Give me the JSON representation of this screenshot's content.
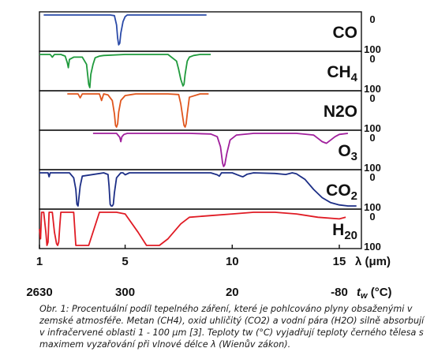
{
  "chart_data": {
    "type": "line",
    "xlabel": "λ (μm)",
    "x_ticks": [
      1,
      5,
      10,
      15
    ],
    "temp_label": "tw (°C)",
    "temp_ticks": [
      {
        "lambda": 1,
        "label": "2630"
      },
      {
        "lambda": 5,
        "label": "300"
      },
      {
        "lambda": 10,
        "label": "20"
      },
      {
        "lambda": 15,
        "label": "-80"
      }
    ],
    "y_ticks": [
      "0",
      "100"
    ],
    "series": [
      {
        "name": "CO",
        "color": "#2a4aa8",
        "x": [
          1.2,
          3.0,
          4.3,
          4.5,
          4.6,
          4.65,
          4.7,
          4.75,
          4.8,
          4.9,
          5.0,
          5.1,
          5.3,
          6.0,
          8.8
        ],
        "y": [
          0,
          0,
          0,
          2,
          30,
          70,
          90,
          85,
          55,
          20,
          5,
          0,
          0,
          0,
          0
        ]
      },
      {
        "name": "CH4",
        "color": "#1f9a3c",
        "x": [
          1.0,
          1.5,
          1.6,
          1.7,
          2.0,
          2.2,
          2.3,
          2.35,
          2.4,
          2.6,
          3.0,
          3.2,
          3.3,
          3.35,
          3.4,
          3.5,
          3.6,
          3.8,
          4.0,
          5.0,
          7.0,
          7.4,
          7.5,
          7.6,
          7.7,
          7.75,
          7.8,
          7.9,
          8.0,
          8.2,
          8.5,
          9.0
        ],
        "y": [
          0,
          0,
          8,
          0,
          0,
          5,
          25,
          40,
          15,
          8,
          8,
          30,
          90,
          100,
          60,
          30,
          10,
          5,
          3,
          0,
          0,
          20,
          45,
          75,
          95,
          90,
          60,
          20,
          8,
          3,
          0,
          0
        ]
      },
      {
        "name": "N2O",
        "color": "#e0561d",
        "x": [
          2.3,
          2.8,
          2.9,
          3.0,
          3.5,
          3.8,
          3.9,
          4.0,
          4.2,
          4.4,
          4.5,
          4.55,
          4.6,
          4.65,
          4.7,
          4.8,
          5.0,
          5.3,
          5.5,
          7.0,
          7.5,
          7.6,
          7.7,
          7.75,
          7.8,
          7.85,
          7.9,
          8.0,
          8.5,
          8.9
        ],
        "y": [
          0,
          0,
          12,
          0,
          0,
          0,
          20,
          0,
          3,
          20,
          60,
          95,
          100,
          90,
          55,
          20,
          5,
          2,
          0,
          0,
          2,
          30,
          75,
          95,
          100,
          90,
          60,
          10,
          0,
          0
        ]
      },
      {
        "name": "O3",
        "color": "#a01f9c",
        "x": [
          3.5,
          4.6,
          4.75,
          4.8,
          4.85,
          4.95,
          5.1,
          6.0,
          8.0,
          9.0,
          9.3,
          9.45,
          9.55,
          9.6,
          9.65,
          9.75,
          9.9,
          10.2,
          11.0,
          13.0,
          13.8,
          14.0,
          14.2,
          14.4,
          14.6,
          14.8,
          15.0,
          15.4
        ],
        "y": [
          0,
          0,
          12,
          25,
          10,
          3,
          0,
          0,
          0,
          2,
          10,
          40,
          90,
          100,
          95,
          60,
          20,
          5,
          0,
          0,
          5,
          15,
          25,
          30,
          20,
          10,
          3,
          0
        ]
      },
      {
        "name": "CO2",
        "color": "#1c2e86",
        "x": [
          1.0,
          1.4,
          1.45,
          1.5,
          1.6,
          2.0,
          2.4,
          2.6,
          2.7,
          2.75,
          2.8,
          2.9,
          3.0,
          4.0,
          4.2,
          4.25,
          4.3,
          4.35,
          4.4,
          4.45,
          4.5,
          4.6,
          4.8,
          4.9,
          5.0,
          5.2,
          6.0,
          9.0,
          9.3,
          9.4,
          9.5,
          10.0,
          10.4,
          10.5,
          10.7,
          11.0,
          12.0,
          12.5,
          12.8,
          13.0,
          13.4,
          13.8,
          14.2,
          14.6,
          15.0,
          15.4,
          15.6,
          15.8
        ],
        "y": [
          0,
          0,
          12,
          0,
          0,
          0,
          0,
          15,
          50,
          95,
          100,
          40,
          10,
          0,
          5,
          40,
          95,
          100,
          100,
          95,
          60,
          15,
          0,
          0,
          6,
          0,
          0,
          0,
          6,
          10,
          0,
          0,
          10,
          12,
          4,
          0,
          2,
          5,
          0,
          3,
          20,
          50,
          75,
          90,
          97,
          100,
          100,
          100
        ]
      },
      {
        "name": "H20",
        "color": "#e01b24",
        "x": [
          1.0,
          1.05,
          1.1,
          1.2,
          1.3,
          1.35,
          1.4,
          1.45,
          1.5,
          1.6,
          1.7,
          1.8,
          1.85,
          1.9,
          1.95,
          2.0,
          2.1,
          2.4,
          2.6,
          2.7,
          3.0,
          3.3,
          3.8,
          4.2,
          4.6,
          5.0,
          5.6,
          6.0,
          6.2,
          6.6,
          7.0,
          7.6,
          8.0,
          9.0,
          10.0,
          11.0,
          12.0,
          13.0,
          14.0,
          15.0,
          15.3
        ],
        "y": [
          50,
          80,
          0,
          0,
          60,
          100,
          90,
          0,
          0,
          0,
          60,
          95,
          100,
          90,
          40,
          0,
          0,
          0,
          0,
          100,
          100,
          100,
          0,
          0,
          0,
          5,
          60,
          100,
          100,
          100,
          80,
          35,
          15,
          10,
          5,
          0,
          0,
          5,
          15,
          20,
          15
        ]
      }
    ]
  },
  "caption": "Obr. 1: Procentuální podíl tepelného záření, které je pohlcováno plyny obsaženými v zemské atmosféře. Metan (CH4), oxid uhličitý (CO2) a vodní pára (H2O) silně absorbují v infračervené oblasti 1 - 100 μm [3]. Teploty tw (°C) vyjadřují teploty černého tělesa s maximem vyzařování při vlnové délce λ (Wienův zákon)."
}
